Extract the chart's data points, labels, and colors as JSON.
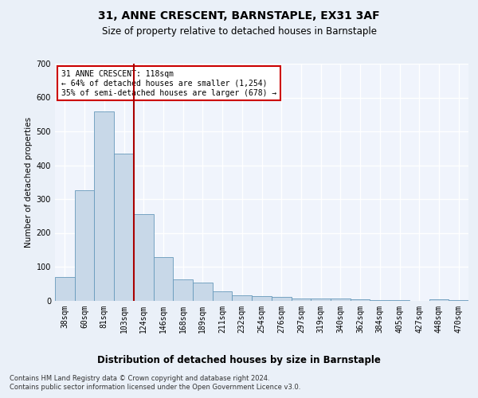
{
  "title": "31, ANNE CRESCENT, BARNSTAPLE, EX31 3AF",
  "subtitle": "Size of property relative to detached houses in Barnstaple",
  "xlabel": "Distribution of detached houses by size in Barnstaple",
  "ylabel": "Number of detached properties",
  "categories": [
    "38sqm",
    "60sqm",
    "81sqm",
    "103sqm",
    "124sqm",
    "146sqm",
    "168sqm",
    "189sqm",
    "211sqm",
    "232sqm",
    "254sqm",
    "276sqm",
    "297sqm",
    "319sqm",
    "340sqm",
    "362sqm",
    "384sqm",
    "405sqm",
    "427sqm",
    "448sqm",
    "470sqm"
  ],
  "values": [
    70,
    325,
    560,
    435,
    255,
    128,
    63,
    52,
    27,
    15,
    13,
    10,
    7,
    5,
    5,
    3,
    1,
    1,
    0,
    4,
    1
  ],
  "bar_color": "#c8d8e8",
  "bar_edge_color": "#6699bb",
  "vline_color": "#aa0000",
  "annotation_text": "31 ANNE CRESCENT: 118sqm\n← 64% of detached houses are smaller (1,254)\n35% of semi-detached houses are larger (678) →",
  "annotation_box_color": "#ffffff",
  "annotation_box_edge": "#cc0000",
  "footer": "Contains HM Land Registry data © Crown copyright and database right 2024.\nContains public sector information licensed under the Open Government Licence v3.0.",
  "bg_color": "#eaf0f8",
  "plot_bg_color": "#f0f4fc",
  "grid_color": "#ffffff",
  "ylim": [
    0,
    700
  ],
  "yticks": [
    0,
    100,
    200,
    300,
    400,
    500,
    600,
    700
  ],
  "title_fontsize": 10,
  "subtitle_fontsize": 8.5,
  "xlabel_fontsize": 8.5,
  "ylabel_fontsize": 7.5,
  "tick_fontsize": 7,
  "annotation_fontsize": 7,
  "footer_fontsize": 6
}
